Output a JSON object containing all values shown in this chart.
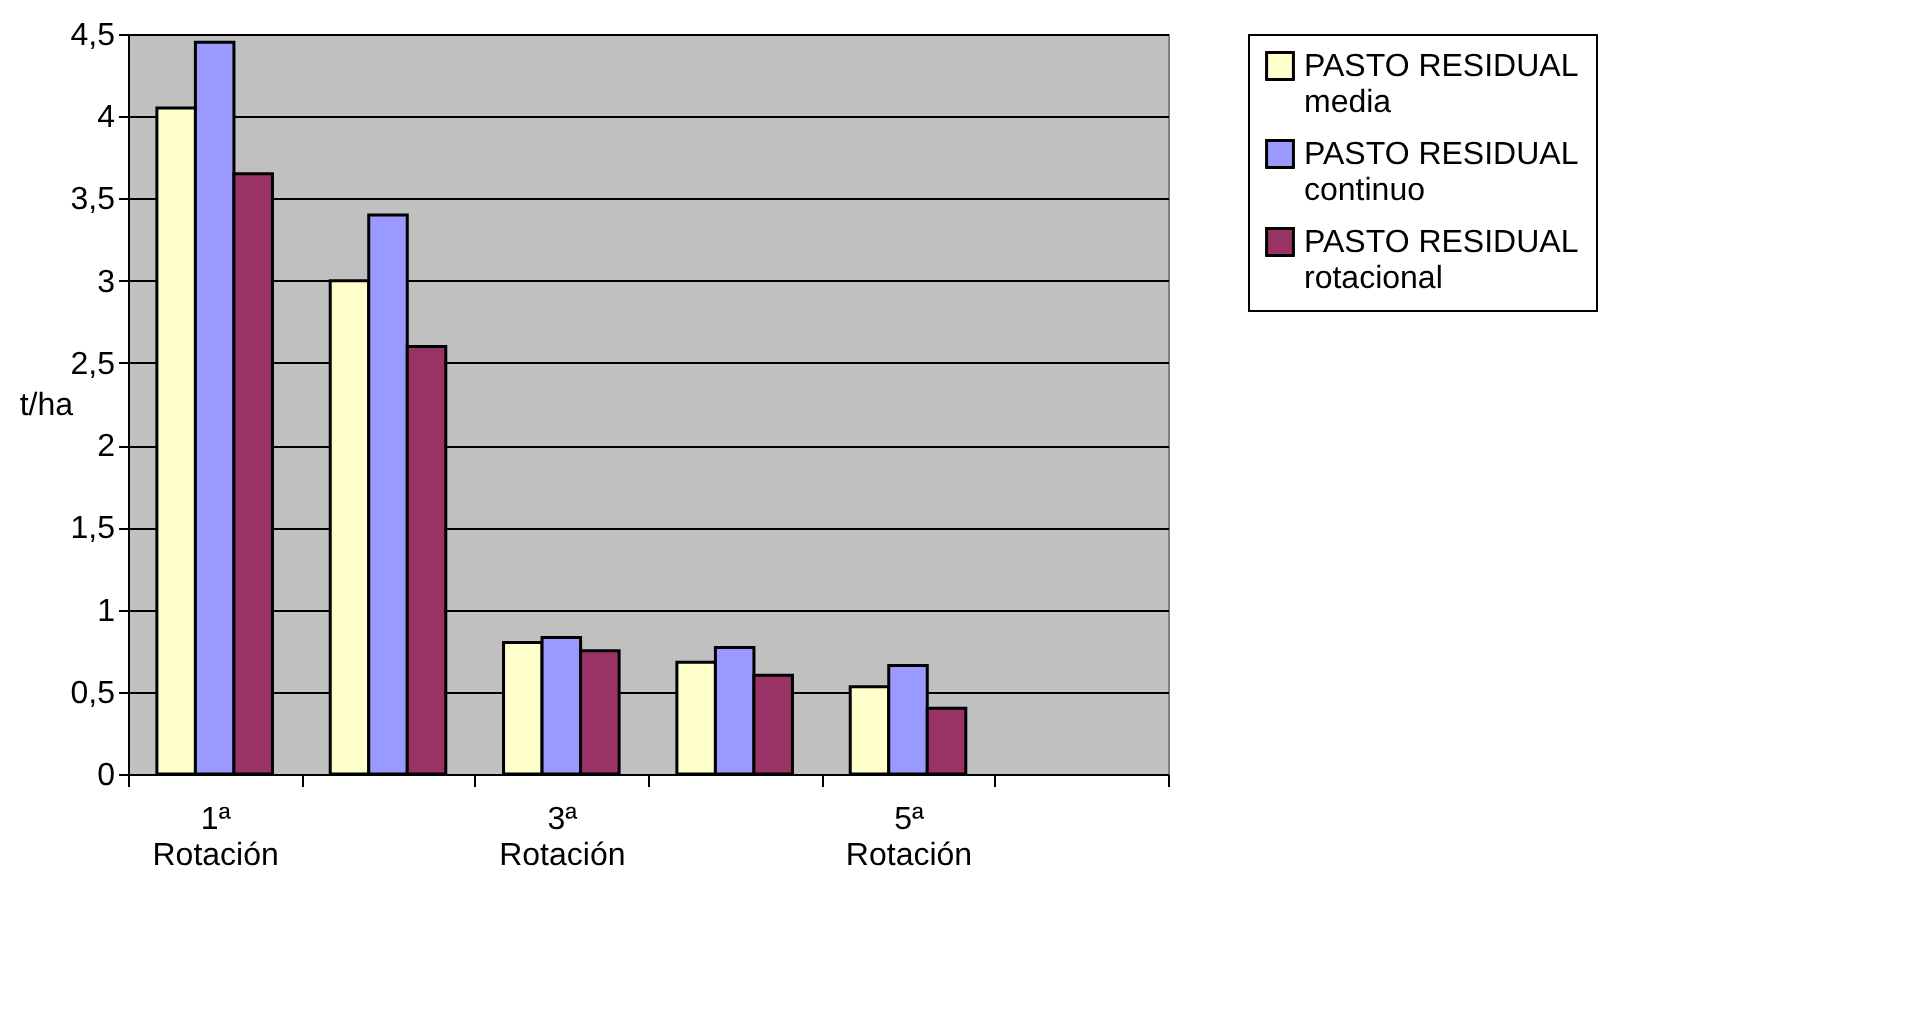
{
  "chart_data": {
    "type": "bar",
    "ylabel": "t/ha",
    "categories": [
      "1ª Rotación",
      null,
      "3ª Rotación",
      null,
      "5ª Rotación",
      null
    ],
    "series": [
      {
        "name": "PASTO RESIDUAL media",
        "color": "#ffffcc",
        "values": [
          4.05,
          3.0,
          0.8,
          0.68,
          0.53,
          null
        ]
      },
      {
        "name": "PASTO RESIDUAL continuo",
        "color": "#9999ff",
        "values": [
          4.45,
          3.4,
          0.83,
          0.77,
          0.66,
          null
        ]
      },
      {
        "name": "PASTO RESIDUAL rotacional",
        "color": "#993366",
        "values": [
          3.65,
          2.6,
          0.75,
          0.6,
          0.4,
          null
        ]
      }
    ],
    "ylim": [
      0,
      4.5
    ],
    "yticks": [
      0,
      {
        "value": 0.5,
        "label": "0,5"
      },
      1,
      {
        "value": 1.5,
        "label": "1,5"
      },
      2,
      {
        "value": 2.5,
        "label": "2,5"
      },
      3,
      {
        "value": 3.5,
        "label": "3,5"
      },
      4,
      {
        "value": 4.5,
        "label": "4,5"
      }
    ],
    "grid": "y",
    "legend": "right"
  }
}
